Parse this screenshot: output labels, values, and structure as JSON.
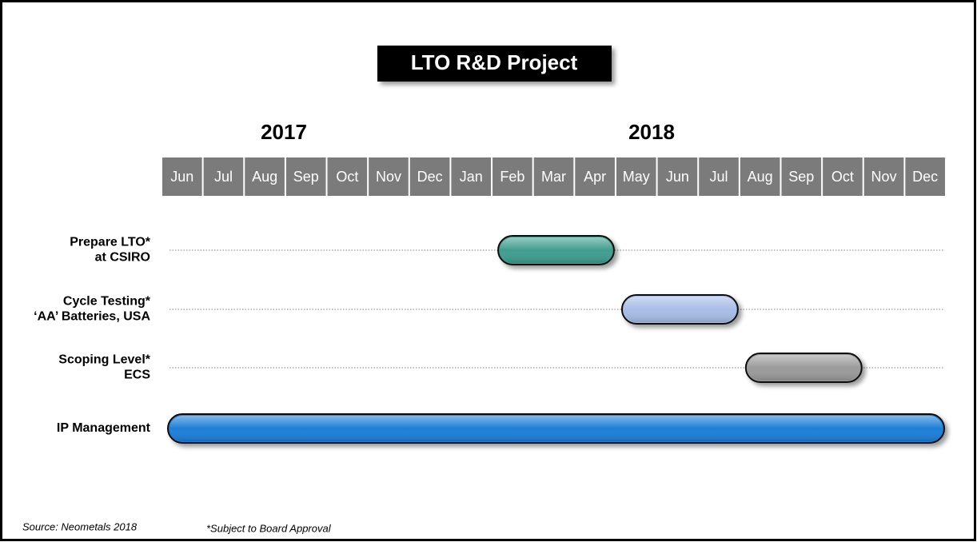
{
  "chart_data": {
    "type": "gantt",
    "title": "LTO R&D Project",
    "years": [
      "2017",
      "2018"
    ],
    "categories": [
      "Jun",
      "Jul",
      "Aug",
      "Sep",
      "Oct",
      "Nov",
      "Dec",
      "Jan",
      "Feb",
      "Mar",
      "Apr",
      "May",
      "Jun",
      "Jul",
      "Aug",
      "Sep",
      "Oct",
      "Nov",
      "Dec"
    ],
    "xlim": [
      "2017-06",
      "2018-12"
    ],
    "tasks": [
      {
        "name": [
          "Prepare LTO*",
          "at CSIRO"
        ],
        "start": "2018-02",
        "end": "2018-04",
        "color": "#3f9e8f"
      },
      {
        "name": [
          "Cycle Testing*",
          "‘AA’ Batteries, USA"
        ],
        "start": "2018-05",
        "end": "2018-07",
        "color": "#a7bde6"
      },
      {
        "name": [
          "Scoping Level*",
          "ECS"
        ],
        "start": "2018-08",
        "end": "2018-10",
        "color": "#9b9b9b"
      },
      {
        "name": [
          "IP Management"
        ],
        "start": "2017-06",
        "end": "2018-12",
        "color": "#1b7fd8"
      }
    ],
    "source": "Source:  Neometals 2018",
    "footnote": "*Subject to Board Approval"
  }
}
